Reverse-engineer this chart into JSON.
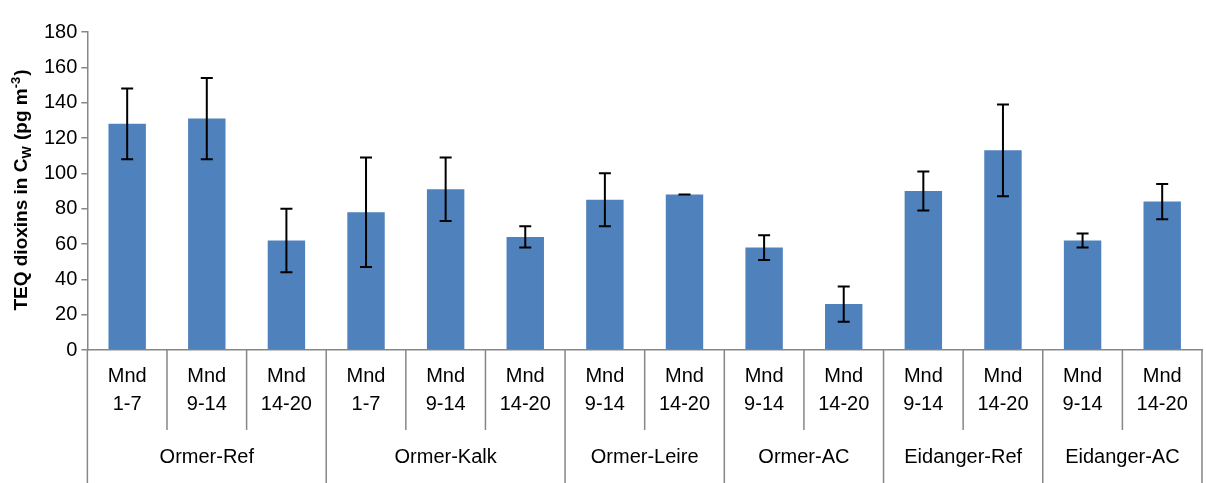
{
  "chart_data": {
    "type": "bar",
    "ylabel": "TEQ dioxins in C$_{W}$ (pg m$^{-3}$)",
    "categories": [
      "Mnd 1-7",
      "Mnd 9-14",
      "Mnd 14-20",
      "Mnd 1-7",
      "Mnd 9-14",
      "Mnd 14-20",
      "Mnd 9-14",
      "Mnd 14-20",
      "Mnd 9-14",
      "Mnd 14-20",
      "Mnd 9-14",
      "Mnd 14-20",
      "Mnd 9-14",
      "Mnd 14-20"
    ],
    "values": [
      128,
      131,
      62,
      78,
      91,
      64,
      85,
      88,
      58,
      26,
      90,
      113,
      62,
      84
    ],
    "errors": [
      20,
      23,
      18,
      31,
      18,
      6,
      15,
      0,
      7,
      10,
      11,
      26,
      4,
      10
    ],
    "color": "#4f81bd",
    "ylim": [
      0,
      180
    ],
    "yticks": [
      0,
      20,
      40,
      60,
      80,
      100,
      120,
      140,
      160,
      180
    ],
    "annotations": [
      "Ormer-Ref",
      "Ormer-Kalk",
      "Ormer-Leire",
      "Ormer-AC",
      "Eidanger-Ref",
      "Eidanger-AC"
    ],
    "legend": false
  }
}
